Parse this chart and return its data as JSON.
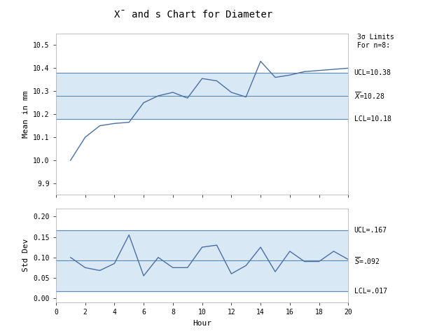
{
  "title": "$\\overline{X}$ and s Chart for Diameter",
  "title_display": "X̄ and s Chart for Diameter",
  "xbar_hours": [
    1,
    2,
    3,
    4,
    5,
    6,
    7,
    8,
    9,
    10,
    11,
    12,
    13,
    14,
    15,
    16,
    17,
    18,
    19,
    20
  ],
  "xbar_values": [
    10.0,
    10.1,
    10.15,
    10.16,
    10.165,
    10.25,
    10.28,
    10.295,
    10.27,
    10.355,
    10.345,
    10.295,
    10.275,
    10.43,
    10.36,
    10.37,
    10.385,
    10.39,
    10.395,
    10.4
  ],
  "s_hours": [
    1,
    2,
    3,
    4,
    5,
    6,
    7,
    8,
    9,
    10,
    11,
    12,
    13,
    14,
    15,
    16,
    17,
    18,
    19,
    20
  ],
  "s_values": [
    0.1,
    0.075,
    0.068,
    0.085,
    0.155,
    0.055,
    0.1,
    0.075,
    0.075,
    0.125,
    0.13,
    0.06,
    0.08,
    0.125,
    0.065,
    0.115,
    0.09,
    0.09,
    0.115,
    0.095
  ],
  "xbar_ucl": 10.38,
  "xbar_mean": 10.28,
  "xbar_lcl": 10.18,
  "s_ucl": 0.167,
  "s_mean": 0.092,
  "s_lcl": 0.017,
  "xbar_ylim": [
    9.85,
    10.55
  ],
  "s_ylim": [
    -0.01,
    0.22
  ],
  "line_color": "#4a6fa5",
  "control_line_color": "#5b8ab5",
  "band_color": "#d9e8f5",
  "background_color": "#ffffff",
  "grid_color": "#cccccc",
  "xlabel": "Hour",
  "ylabel_top": "Mean in mm",
  "ylabel_bottom": "Std Dev",
  "annotation_text": "3σ Limits\nFor n=8:",
  "ucl_label_top": "UCL=10.38",
  "mean_label_top": "$\\overline{X}$=10.28",
  "lcl_label_top": "LCL=10.18",
  "ucl_label_bot": "UCL=.167",
  "mean_label_bot": "$\\overline{S}$=.092",
  "lcl_label_bot": "LCL=.017",
  "xticks": [
    0,
    2,
    4,
    6,
    8,
    10,
    12,
    14,
    16,
    18,
    20
  ],
  "xbar_yticks": [
    9.9,
    10.0,
    10.1,
    10.2,
    10.3,
    10.4,
    10.5
  ],
  "s_yticks": [
    0,
    0.05,
    0.1,
    0.15,
    0.2
  ],
  "font_family": "monospace"
}
